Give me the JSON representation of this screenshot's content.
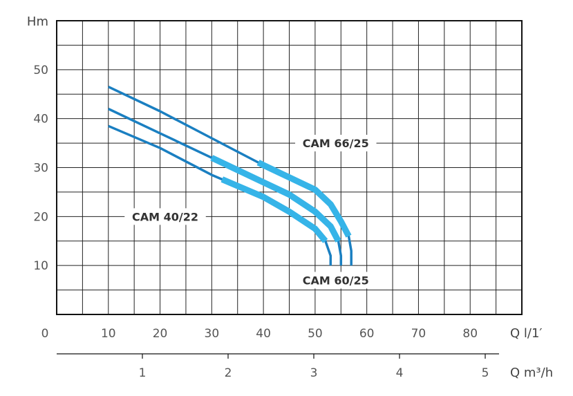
{
  "chart_data": {
    "type": "line",
    "title": "",
    "ylabel": "Hm",
    "xlabel": "Q l/1′",
    "xlabel_secondary": "Q m³/h",
    "x_origin_label": "0",
    "xlim": [
      0,
      90
    ],
    "ylim": [
      0,
      60
    ],
    "x_ticks": [
      10,
      20,
      30,
      40,
      50,
      60,
      70,
      80
    ],
    "y_ticks": [
      10,
      20,
      30,
      40,
      50
    ],
    "secondary_ticks": [
      1,
      2,
      3,
      4,
      5
    ],
    "grid": true,
    "colors": {
      "dark_line": "#1a7fc1",
      "light_band": "#36b4e8",
      "grid": "#222222",
      "axis": "#111111"
    },
    "series": [
      {
        "name": "CAM 66/25",
        "points": [
          [
            10,
            46.5
          ],
          [
            20,
            41.5
          ],
          [
            30,
            36
          ],
          [
            40,
            30.5
          ],
          [
            45,
            28
          ],
          [
            50,
            25.5
          ],
          [
            53,
            22.5
          ],
          [
            55,
            19
          ],
          [
            56.5,
            16
          ],
          [
            57,
            13
          ],
          [
            57,
            10
          ]
        ],
        "band_range": [
          39,
          56.5
        ]
      },
      {
        "name": "CAM 60/25",
        "points": [
          [
            10,
            42
          ],
          [
            20,
            37
          ],
          [
            30,
            32
          ],
          [
            40,
            27
          ],
          [
            45,
            24.5
          ],
          [
            50,
            21
          ],
          [
            53,
            18
          ],
          [
            54.5,
            15
          ],
          [
            55,
            12
          ],
          [
            55,
            10
          ]
        ],
        "band_range": [
          30,
          54.5
        ]
      },
      {
        "name": "CAM 40/22",
        "points": [
          [
            10,
            38.5
          ],
          [
            20,
            34
          ],
          [
            30,
            28.5
          ],
          [
            40,
            24
          ],
          [
            45,
            21
          ],
          [
            50,
            17.5
          ],
          [
            52,
            15
          ],
          [
            53,
            12
          ],
          [
            53,
            10
          ]
        ],
        "band_range": [
          32,
          52
        ]
      }
    ],
    "labels": [
      {
        "text": "CAM 66/25",
        "x": 54,
        "y": 35
      },
      {
        "text": "CAM 40/22",
        "x": 21,
        "y": 20
      },
      {
        "text": "CAM 60/25",
        "x": 54,
        "y": 7
      }
    ]
  }
}
